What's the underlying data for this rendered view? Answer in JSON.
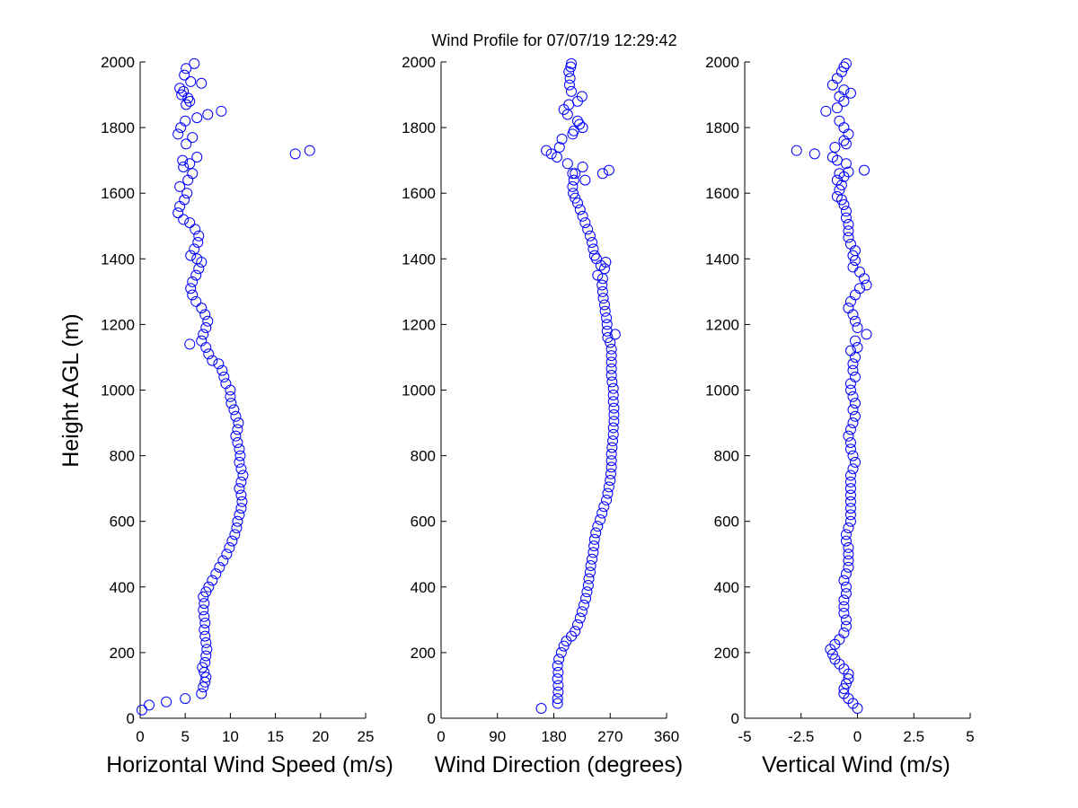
{
  "title": "Wind Profile for  07/07/19 12:29:42",
  "ylabel": "Height AGL (m)",
  "marker_color": "#0000ff",
  "marker": "open-circle",
  "chart_data": [
    {
      "type": "scatter",
      "xlabel": "Horizontal Wind Speed (m/s)",
      "ylabel": "Height AGL (m)",
      "xlim": [
        0,
        25
      ],
      "ylim": [
        0,
        2000
      ],
      "xticks": [
        "0",
        "5",
        "10",
        "15",
        "20",
        "25"
      ],
      "yticks": [
        "0",
        "200",
        "400",
        "600",
        "800",
        "1000",
        "1200",
        "1400",
        "1600",
        "1800",
        "2000"
      ],
      "grid": false,
      "points": [
        [
          0.2,
          25
        ],
        [
          1.0,
          40
        ],
        [
          2.9,
          50
        ],
        [
          5.0,
          60
        ],
        [
          6.8,
          75
        ],
        [
          7.0,
          95
        ],
        [
          7.2,
          110
        ],
        [
          7.3,
          125
        ],
        [
          7.1,
          140
        ],
        [
          6.9,
          155
        ],
        [
          7.2,
          170
        ],
        [
          7.3,
          190
        ],
        [
          7.4,
          210
        ],
        [
          7.3,
          230
        ],
        [
          7.2,
          250
        ],
        [
          7.1,
          270
        ],
        [
          7.2,
          290
        ],
        [
          7.1,
          310
        ],
        [
          7.0,
          330
        ],
        [
          7.1,
          350
        ],
        [
          7.0,
          370
        ],
        [
          7.3,
          385
        ],
        [
          7.6,
          400
        ],
        [
          8.0,
          420
        ],
        [
          8.4,
          440
        ],
        [
          8.8,
          460
        ],
        [
          9.2,
          480
        ],
        [
          9.6,
          500
        ],
        [
          9.9,
          520
        ],
        [
          10.2,
          540
        ],
        [
          10.5,
          560
        ],
        [
          10.7,
          580
        ],
        [
          10.8,
          600
        ],
        [
          11.0,
          620
        ],
        [
          11.2,
          640
        ],
        [
          11.3,
          660
        ],
        [
          11.2,
          680
        ],
        [
          11.0,
          700
        ],
        [
          11.2,
          720
        ],
        [
          11.4,
          740
        ],
        [
          11.2,
          760
        ],
        [
          11.0,
          780
        ],
        [
          11.1,
          800
        ],
        [
          11.0,
          820
        ],
        [
          10.8,
          840
        ],
        [
          10.6,
          860
        ],
        [
          10.8,
          880
        ],
        [
          10.9,
          900
        ],
        [
          10.6,
          920
        ],
        [
          10.4,
          940
        ],
        [
          10.1,
          960
        ],
        [
          10.0,
          980
        ],
        [
          10.0,
          1000
        ],
        [
          9.5,
          1020
        ],
        [
          9.3,
          1040
        ],
        [
          9.1,
          1060
        ],
        [
          8.7,
          1080
        ],
        [
          8.0,
          1090
        ],
        [
          7.6,
          1110
        ],
        [
          7.3,
          1130
        ],
        [
          5.5,
          1140
        ],
        [
          6.8,
          1150
        ],
        [
          7.0,
          1170
        ],
        [
          7.3,
          1190
        ],
        [
          7.5,
          1210
        ],
        [
          7.2,
          1230
        ],
        [
          6.8,
          1250
        ],
        [
          6.2,
          1270
        ],
        [
          5.8,
          1290
        ],
        [
          5.6,
          1310
        ],
        [
          5.8,
          1330
        ],
        [
          6.2,
          1350
        ],
        [
          6.5,
          1370
        ],
        [
          6.8,
          1390
        ],
        [
          6.3,
          1400
        ],
        [
          5.6,
          1410
        ],
        [
          6.0,
          1430
        ],
        [
          6.4,
          1450
        ],
        [
          6.5,
          1470
        ],
        [
          6.1,
          1490
        ],
        [
          5.5,
          1510
        ],
        [
          4.8,
          1520
        ],
        [
          4.2,
          1540
        ],
        [
          4.4,
          1560
        ],
        [
          4.9,
          1580
        ],
        [
          5.2,
          1600
        ],
        [
          4.4,
          1620
        ],
        [
          5.3,
          1640
        ],
        [
          5.8,
          1660
        ],
        [
          4.8,
          1680
        ],
        [
          5.5,
          1690
        ],
        [
          4.7,
          1700
        ],
        [
          17.2,
          1720
        ],
        [
          18.8,
          1730
        ],
        [
          6.3,
          1710
        ],
        [
          5.1,
          1750
        ],
        [
          5.8,
          1770
        ],
        [
          4.2,
          1780
        ],
        [
          4.5,
          1800
        ],
        [
          5.0,
          1820
        ],
        [
          7.5,
          1840
        ],
        [
          9.0,
          1850
        ],
        [
          5.1,
          1870
        ],
        [
          5.3,
          1890
        ],
        [
          4.6,
          1900
        ],
        [
          4.4,
          1920
        ],
        [
          5.6,
          1940
        ],
        [
          4.9,
          1960
        ],
        [
          5.1,
          1980
        ],
        [
          6.0,
          1995
        ],
        [
          6.3,
          1830
        ],
        [
          6.8,
          1935
        ],
        [
          4.8,
          1910
        ],
        [
          5.5,
          1880
        ]
      ]
    },
    {
      "type": "scatter",
      "xlabel": "Wind Direction (degrees)",
      "ylabel": "",
      "xlim": [
        0,
        360
      ],
      "ylim": [
        0,
        2000
      ],
      "xticks": [
        "0",
        "90",
        "180",
        "270",
        "360"
      ],
      "yticks": [
        "0",
        "200",
        "400",
        "600",
        "800",
        "1000",
        "1200",
        "1400",
        "1600",
        "1800",
        "2000"
      ],
      "grid": false,
      "points": [
        [
          160,
          30
        ],
        [
          186,
          45
        ],
        [
          186,
          60
        ],
        [
          187,
          80
        ],
        [
          187,
          100
        ],
        [
          186,
          120
        ],
        [
          187,
          140
        ],
        [
          186,
          160
        ],
        [
          188,
          180
        ],
        [
          192,
          200
        ],
        [
          196,
          220
        ],
        [
          200,
          235
        ],
        [
          208,
          250
        ],
        [
          214,
          265
        ],
        [
          218,
          285
        ],
        [
          222,
          305
        ],
        [
          225,
          325
        ],
        [
          228,
          345
        ],
        [
          231,
          365
        ],
        [
          233,
          385
        ],
        [
          235,
          405
        ],
        [
          236,
          425
        ],
        [
          238,
          445
        ],
        [
          239,
          465
        ],
        [
          241,
          485
        ],
        [
          243,
          505
        ],
        [
          244,
          525
        ],
        [
          245,
          545
        ],
        [
          247,
          565
        ],
        [
          250,
          585
        ],
        [
          254,
          605
        ],
        [
          257,
          625
        ],
        [
          260,
          645
        ],
        [
          264,
          665
        ],
        [
          266,
          685
        ],
        [
          268,
          705
        ],
        [
          270,
          725
        ],
        [
          271,
          745
        ],
        [
          272,
          765
        ],
        [
          272,
          785
        ],
        [
          272,
          805
        ],
        [
          273,
          825
        ],
        [
          274,
          845
        ],
        [
          275,
          865
        ],
        [
          275,
          885
        ],
        [
          276,
          905
        ],
        [
          276,
          925
        ],
        [
          276,
          945
        ],
        [
          275,
          965
        ],
        [
          275,
          985
        ],
        [
          275,
          1005
        ],
        [
          273,
          1025
        ],
        [
          272,
          1045
        ],
        [
          272,
          1065
        ],
        [
          272,
          1085
        ],
        [
          272,
          1105
        ],
        [
          272,
          1125
        ],
        [
          270,
          1145
        ],
        [
          278,
          1170
        ],
        [
          266,
          1160
        ],
        [
          265,
          1180
        ],
        [
          265,
          1200
        ],
        [
          264,
          1220
        ],
        [
          262,
          1240
        ],
        [
          261,
          1260
        ],
        [
          259,
          1280
        ],
        [
          258,
          1300
        ],
        [
          257,
          1320
        ],
        [
          258,
          1340
        ],
        [
          250,
          1350
        ],
        [
          261,
          1370
        ],
        [
          263,
          1390
        ],
        [
          255,
          1380
        ],
        [
          248,
          1400
        ],
        [
          245,
          1410
        ],
        [
          243,
          1430
        ],
        [
          241,
          1450
        ],
        [
          238,
          1470
        ],
        [
          234,
          1490
        ],
        [
          230,
          1510
        ],
        [
          226,
          1530
        ],
        [
          222,
          1550
        ],
        [
          218,
          1570
        ],
        [
          214,
          1585
        ],
        [
          211,
          1600
        ],
        [
          210,
          1620
        ],
        [
          212,
          1640
        ],
        [
          210,
          1660
        ],
        [
          268,
          1670
        ],
        [
          258,
          1660
        ],
        [
          226,
          1680
        ],
        [
          202,
          1690
        ],
        [
          168,
          1730
        ],
        [
          176,
          1720
        ],
        [
          185,
          1710
        ],
        [
          189,
          1740
        ],
        [
          193,
          1765
        ],
        [
          210,
          1780
        ],
        [
          226,
          1800
        ],
        [
          218,
          1820
        ],
        [
          202,
          1840
        ],
        [
          196,
          1855
        ],
        [
          204,
          1870
        ],
        [
          218,
          1880
        ],
        [
          225,
          1895
        ],
        [
          208,
          1910
        ],
        [
          205,
          1930
        ],
        [
          206,
          1950
        ],
        [
          204,
          1970
        ],
        [
          207,
          1985
        ],
        [
          208,
          1995
        ],
        [
          214,
          1660
        ],
        [
          230,
          1640
        ],
        [
          221,
          1810
        ],
        [
          212,
          1790
        ]
      ]
    },
    {
      "type": "scatter",
      "xlabel": "Vertical Wind (m/s)",
      "ylabel": "",
      "xlim": [
        -5,
        5
      ],
      "ylim": [
        0,
        2000
      ],
      "xticks": [
        "-5",
        "-2.5",
        "0",
        "2.5",
        "5"
      ],
      "yticks": [
        "0",
        "200",
        "400",
        "600",
        "800",
        "1000",
        "1200",
        "1400",
        "1600",
        "1800",
        "2000"
      ],
      "grid": false,
      "points": [
        [
          0.0,
          30
        ],
        [
          -0.2,
          45
        ],
        [
          -0.4,
          60
        ],
        [
          -0.6,
          75
        ],
        [
          -0.6,
          90
        ],
        [
          -0.5,
          105
        ],
        [
          -0.4,
          120
        ],
        [
          -0.4,
          135
        ],
        [
          -0.6,
          150
        ],
        [
          -0.8,
          165
        ],
        [
          -1.0,
          180
        ],
        [
          -1.1,
          195
        ],
        [
          -1.2,
          210
        ],
        [
          -1.0,
          225
        ],
        [
          -0.8,
          240
        ],
        [
          -0.6,
          260
        ],
        [
          -0.5,
          280
        ],
        [
          -0.5,
          300
        ],
        [
          -0.6,
          320
        ],
        [
          -0.6,
          340
        ],
        [
          -0.6,
          360
        ],
        [
          -0.5,
          380
        ],
        [
          -0.5,
          400
        ],
        [
          -0.6,
          420
        ],
        [
          -0.5,
          440
        ],
        [
          -0.4,
          460
        ],
        [
          -0.4,
          480
        ],
        [
          -0.4,
          500
        ],
        [
          -0.4,
          520
        ],
        [
          -0.5,
          540
        ],
        [
          -0.5,
          560
        ],
        [
          -0.4,
          580
        ],
        [
          -0.3,
          600
        ],
        [
          -0.3,
          620
        ],
        [
          -0.3,
          640
        ],
        [
          -0.3,
          660
        ],
        [
          -0.3,
          680
        ],
        [
          -0.3,
          700
        ],
        [
          -0.3,
          720
        ],
        [
          -0.3,
          740
        ],
        [
          -0.2,
          760
        ],
        [
          -0.1,
          780
        ],
        [
          -0.2,
          800
        ],
        [
          -0.3,
          820
        ],
        [
          -0.3,
          840
        ],
        [
          -0.4,
          860
        ],
        [
          -0.3,
          880
        ],
        [
          -0.2,
          900
        ],
        [
          -0.1,
          920
        ],
        [
          -0.2,
          940
        ],
        [
          -0.1,
          960
        ],
        [
          -0.2,
          980
        ],
        [
          -0.3,
          1000
        ],
        [
          -0.3,
          1020
        ],
        [
          -0.1,
          1040
        ],
        [
          -0.2,
          1060
        ],
        [
          -0.2,
          1080
        ],
        [
          -0.1,
          1100
        ],
        [
          -0.3,
          1120
        ],
        [
          0.0,
          1130
        ],
        [
          -0.1,
          1150
        ],
        [
          0.4,
          1170
        ],
        [
          0.0,
          1190
        ],
        [
          -0.1,
          1210
        ],
        [
          -0.2,
          1230
        ],
        [
          -0.4,
          1250
        ],
        [
          -0.3,
          1270
        ],
        [
          -0.1,
          1290
        ],
        [
          0.1,
          1310
        ],
        [
          0.4,
          1320
        ],
        [
          0.3,
          1340
        ],
        [
          0.1,
          1360
        ],
        [
          -0.2,
          1375
        ],
        [
          -0.1,
          1395
        ],
        [
          -0.2,
          1410
        ],
        [
          -0.1,
          1425
        ],
        [
          -0.3,
          1445
        ],
        [
          -0.4,
          1465
        ],
        [
          -0.4,
          1485
        ],
        [
          -0.4,
          1505
        ],
        [
          -0.5,
          1525
        ],
        [
          -0.5,
          1545
        ],
        [
          -0.6,
          1565
        ],
        [
          -0.7,
          1580
        ],
        [
          -0.9,
          1590
        ],
        [
          -0.8,
          1610
        ],
        [
          -0.7,
          1625
        ],
        [
          -0.9,
          1640
        ],
        [
          -0.6,
          1650
        ],
        [
          -0.4,
          1665
        ],
        [
          0.3,
          1670
        ],
        [
          -0.5,
          1690
        ],
        [
          -1.1,
          1710
        ],
        [
          -2.7,
          1730
        ],
        [
          -1.9,
          1720
        ],
        [
          -0.9,
          1700
        ],
        [
          -1.0,
          1740
        ],
        [
          -0.6,
          1760
        ],
        [
          -0.4,
          1780
        ],
        [
          -0.6,
          1800
        ],
        [
          -0.8,
          1820
        ],
        [
          -1.4,
          1850
        ],
        [
          -0.9,
          1860
        ],
        [
          -0.6,
          1880
        ],
        [
          -0.8,
          1895
        ],
        [
          -0.3,
          1905
        ],
        [
          -0.6,
          1915
        ],
        [
          -1.1,
          1930
        ],
        [
          -0.9,
          1950
        ],
        [
          -0.7,
          1970
        ],
        [
          -0.6,
          1985
        ],
        [
          -0.5,
          1995
        ],
        [
          -0.8,
          1660
        ],
        [
          -0.5,
          1750
        ]
      ]
    }
  ]
}
